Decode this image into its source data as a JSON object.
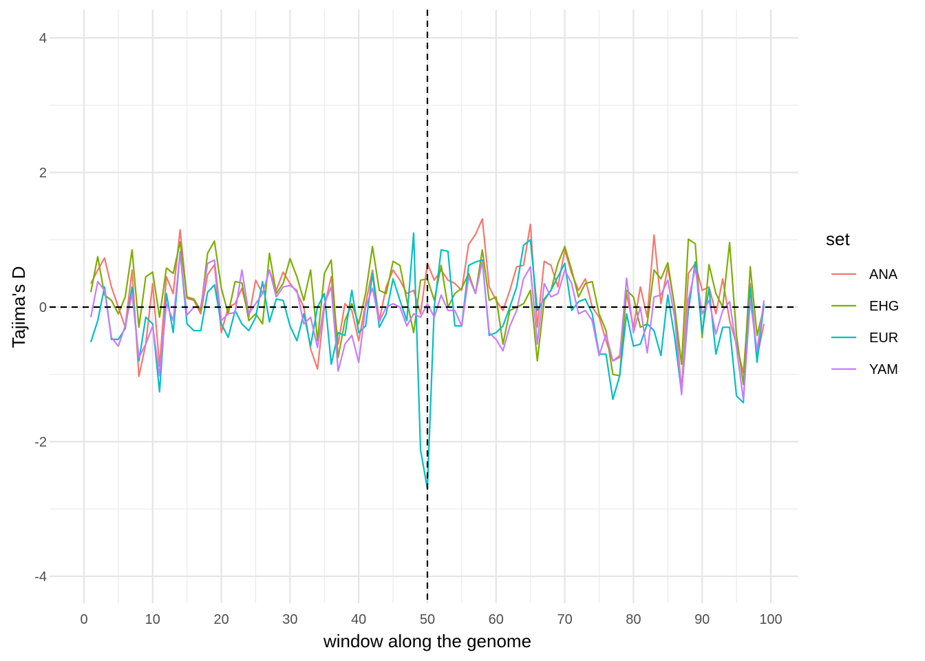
{
  "chart_data": {
    "type": "line",
    "title": "",
    "xlabel": "window along the genome",
    "ylabel": "Tajima's D",
    "xlim": [
      0,
      100
    ],
    "ylim": [
      -4,
      4
    ],
    "x_ticks": [
      0,
      10,
      20,
      30,
      40,
      50,
      60,
      70,
      80,
      90,
      100
    ],
    "y_ticks": [
      -4,
      -2,
      0,
      2,
      4
    ],
    "grid": true,
    "reference_lines": {
      "horizontal": 0,
      "vertical": 50,
      "style": "dashed"
    },
    "legend": {
      "title": "set",
      "position": "right"
    },
    "x": [
      1,
      2,
      3,
      4,
      5,
      6,
      7,
      8,
      9,
      10,
      11,
      12,
      13,
      14,
      15,
      16,
      17,
      18,
      19,
      20,
      21,
      22,
      23,
      24,
      25,
      26,
      27,
      28,
      29,
      30,
      31,
      32,
      33,
      34,
      35,
      36,
      37,
      38,
      39,
      40,
      41,
      42,
      43,
      44,
      45,
      46,
      47,
      48,
      49,
      50,
      51,
      52,
      53,
      54,
      55,
      56,
      57,
      58,
      59,
      60,
      61,
      62,
      63,
      64,
      65,
      66,
      67,
      68,
      69,
      70,
      71,
      72,
      73,
      74,
      75,
      76,
      77,
      78,
      79,
      80,
      81,
      82,
      83,
      84,
      85,
      86,
      87,
      88,
      89,
      90,
      91,
      92,
      93,
      94,
      95,
      96,
      97,
      98,
      99
    ],
    "series": [
      {
        "name": "ANA",
        "color": "#F8766D",
        "values": [
          0.35,
          0.55,
          0.73,
          0.3,
          0.0,
          -0.3,
          0.55,
          -1.03,
          -0.55,
          0.35,
          -0.88,
          0.45,
          0.2,
          1.15,
          0.13,
          0.1,
          -0.1,
          0.48,
          0.63,
          -0.38,
          0.0,
          0.05,
          0.28,
          -0.15,
          0.4,
          0.2,
          0.55,
          0.25,
          0.52,
          0.35,
          0.22,
          0.0,
          -0.62,
          -0.92,
          0.0,
          0.45,
          -0.55,
          0.05,
          -0.05,
          -0.5,
          0.05,
          0.55,
          -0.2,
          0.3,
          0.55,
          0.4,
          0.2,
          0.25,
          -0.1,
          0.65,
          0.4,
          0.55,
          0.4,
          0.35,
          0.25,
          0.93,
          1.08,
          1.31,
          0.3,
          0.1,
          -0.05,
          0.25,
          0.6,
          0.62,
          1.23,
          -0.3,
          0.68,
          0.62,
          0.3,
          0.85,
          0.5,
          0.25,
          0.42,
          0.0,
          -0.15,
          -0.5,
          -0.8,
          -0.72,
          0.2,
          -0.3,
          0.3,
          -0.15,
          1.07,
          0.05,
          0.6,
          0.0,
          -1.25,
          0.5,
          0.65,
          0.25,
          0.3,
          -0.1,
          0.42,
          -0.2,
          -0.55,
          -0.98,
          0.35,
          -0.75,
          -0.25
        ]
      },
      {
        "name": "EHG",
        "color": "#7CAE00",
        "values": [
          0.22,
          0.75,
          0.18,
          0.1,
          -0.1,
          0.15,
          0.85,
          -0.3,
          0.45,
          0.52,
          -0.15,
          0.58,
          0.5,
          0.97,
          0.15,
          0.12,
          -0.05,
          0.8,
          0.98,
          0.28,
          -0.1,
          0.38,
          0.36,
          -0.2,
          -0.1,
          -0.25,
          0.8,
          0.2,
          0.35,
          0.72,
          0.45,
          0.1,
          0.55,
          -0.5,
          0.5,
          0.7,
          -0.75,
          -0.2,
          0.05,
          -0.25,
          0.2,
          0.9,
          0.25,
          0.2,
          0.68,
          0.62,
          0.1,
          -0.38,
          0.4,
          0.42,
          0.1,
          0.62,
          0.0,
          0.2,
          0.28,
          0.5,
          0.2,
          0.85,
          0.1,
          0.15,
          -0.55,
          -0.05,
          0.0,
          0.05,
          0.25,
          -0.8,
          0.1,
          0.25,
          0.65,
          0.9,
          0.55,
          0.15,
          0.35,
          0.38,
          -0.1,
          -0.35,
          -1.0,
          -1.02,
          0.25,
          0.15,
          -0.3,
          -0.25,
          0.55,
          0.42,
          0.66,
          0.0,
          -0.85,
          1.01,
          0.94,
          -0.45,
          0.63,
          0.2,
          0.0,
          0.96,
          -0.42,
          -1.15,
          0.6,
          -0.42,
          0.0
        ]
      },
      {
        "name": "EUR",
        "color": "#00BFC4",
        "values": [
          -0.52,
          -0.2,
          0.3,
          -0.48,
          -0.48,
          -0.32,
          0.3,
          -0.8,
          -0.15,
          -0.25,
          -1.26,
          0.2,
          -0.38,
          0.82,
          -0.25,
          -0.35,
          -0.35,
          0.22,
          0.33,
          -0.25,
          -0.45,
          -0.05,
          -0.25,
          -0.35,
          -0.15,
          0.38,
          -0.22,
          0.12,
          0.1,
          -0.28,
          -0.5,
          -0.1,
          -0.58,
          0.0,
          0.2,
          -0.85,
          -0.38,
          -0.42,
          0.25,
          -0.38,
          -0.28,
          0.5,
          -0.3,
          -0.1,
          0.42,
          0.1,
          -0.2,
          1.1,
          -2.12,
          -2.7,
          0.0,
          0.85,
          0.83,
          -0.28,
          -0.28,
          0.62,
          0.67,
          0.7,
          -0.42,
          -0.38,
          -0.28,
          0.0,
          0.3,
          0.92,
          1.0,
          -0.05,
          0.12,
          0.25,
          0.45,
          0.65,
          -0.05,
          0.08,
          0.12,
          -0.1,
          -0.7,
          -0.7,
          -1.37,
          -1.02,
          -0.1,
          -0.58,
          -0.55,
          -0.25,
          -0.35,
          -0.72,
          0.18,
          -0.45,
          -1.28,
          -0.05,
          0.67,
          -0.38,
          0.28,
          -0.7,
          -0.3,
          -0.3,
          -1.32,
          -1.42,
          0.3,
          -0.82,
          0.05
        ]
      },
      {
        "name": "YAM",
        "color": "#C77CFF",
        "values": [
          -0.15,
          0.38,
          0.25,
          -0.45,
          -0.58,
          -0.28,
          0.2,
          -0.75,
          -0.55,
          -0.28,
          -1.02,
          0.05,
          -0.2,
          0.8,
          -0.12,
          0.0,
          0.0,
          0.65,
          0.7,
          -0.2,
          -0.1,
          -0.08,
          0.55,
          -0.1,
          0.05,
          0.2,
          0.55,
          0.15,
          0.3,
          0.32,
          0.25,
          -0.25,
          -0.15,
          -0.6,
          0.05,
          0.3,
          -0.95,
          -0.55,
          -0.42,
          -0.82,
          0.0,
          0.28,
          -0.22,
          0.0,
          0.05,
          0.0,
          -0.28,
          -0.1,
          -0.15,
          0.05,
          -0.15,
          0.18,
          -0.05,
          -0.05,
          -0.28,
          0.45,
          0.2,
          0.68,
          -0.38,
          -0.48,
          -0.65,
          -0.28,
          -0.05,
          0.42,
          0.6,
          -0.55,
          0.35,
          0.15,
          0.2,
          0.55,
          0.35,
          -0.1,
          -0.05,
          -0.2,
          -0.72,
          -0.4,
          -0.8,
          -0.75,
          0.43,
          -0.38,
          0.0,
          -0.68,
          0.15,
          0.18,
          0.4,
          -0.15,
          -1.3,
          0.1,
          0.58,
          -0.1,
          0.1,
          -0.4,
          -0.05,
          0.08,
          -0.6,
          -1.38,
          0.1,
          -0.65,
          0.1
        ]
      }
    ]
  }
}
